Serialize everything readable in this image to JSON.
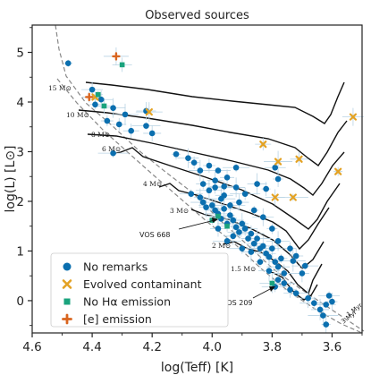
{
  "chart_data": {
    "type": "scatter",
    "title": "Observed sources",
    "xlabel": "log(Teff) [K]",
    "ylabel": "log(L) [L⊙]",
    "xlim": [
      4.6,
      3.5
    ],
    "ylim": [
      -0.65,
      5.55
    ],
    "x_reversed": true,
    "xticks": [
      "4.6",
      "4.4",
      "4.2",
      "4.0",
      "3.8",
      "3.6"
    ],
    "yticks": [
      "0",
      "1",
      "2",
      "3",
      "4",
      "5"
    ],
    "legend_position": "lower-left",
    "colors": {
      "no_remarks": "#0b6faf",
      "evolved": "#e3a224",
      "no_halpha": "#1aa37d",
      "e_emission": "#d9651f",
      "track": "#111111",
      "isochrone": "#888888",
      "errorbar": "#b8d3e4"
    },
    "series": [
      {
        "name": "No remarks",
        "marker": "circle",
        "points": [
          [
            4.48,
            4.78
          ],
          [
            4.4,
            4.25
          ],
          [
            4.39,
            3.95
          ],
          [
            4.37,
            4.05
          ],
          [
            4.35,
            3.62
          ],
          [
            4.33,
            3.88
          ],
          [
            4.31,
            3.55
          ],
          [
            4.29,
            3.75
          ],
          [
            4.27,
            3.42
          ],
          [
            4.22,
            3.52
          ],
          [
            4.2,
            3.37
          ],
          [
            4.33,
            2.97
          ],
          [
            4.22,
            3.82
          ],
          [
            4.12,
            2.95
          ],
          [
            4.08,
            2.87
          ],
          [
            4.06,
            2.78
          ],
          [
            4.04,
            2.62
          ],
          [
            4.01,
            2.72
          ],
          [
            3.98,
            2.62
          ],
          [
            3.95,
            2.48
          ],
          [
            3.92,
            2.68
          ],
          [
            3.99,
            2.42
          ],
          [
            3.96,
            2.3
          ],
          [
            3.92,
            2.28
          ],
          [
            3.89,
            2.15
          ],
          [
            3.85,
            2.35
          ],
          [
            3.82,
            2.25
          ],
          [
            3.79,
            2.68
          ],
          [
            3.78,
            2.45
          ],
          [
            4.07,
            2.15
          ],
          [
            4.04,
            2.08
          ],
          [
            4.03,
            1.98
          ],
          [
            4.02,
            1.88
          ],
          [
            4.0,
            1.92
          ],
          [
            3.99,
            1.82
          ],
          [
            3.98,
            1.75
          ],
          [
            3.97,
            1.65
          ],
          [
            3.96,
            1.85
          ],
          [
            3.95,
            1.55
          ],
          [
            3.94,
            1.72
          ],
          [
            3.93,
            1.62
          ],
          [
            3.92,
            1.48
          ],
          [
            3.91,
            1.38
          ],
          [
            3.9,
            1.55
          ],
          [
            3.89,
            1.45
          ],
          [
            3.88,
            1.25
          ],
          [
            3.87,
            1.35
          ],
          [
            3.86,
            1.15
          ],
          [
            3.85,
            1.25
          ],
          [
            3.84,
            1.05
          ],
          [
            3.83,
            1.1
          ],
          [
            3.82,
            0.95
          ],
          [
            3.81,
            0.88
          ],
          [
            3.8,
            1.05
          ],
          [
            3.79,
            0.78
          ],
          [
            3.78,
            0.68
          ],
          [
            3.77,
            0.85
          ],
          [
            3.76,
            0.55
          ],
          [
            4.03,
            2.35
          ],
          [
            4.01,
            2.22
          ],
          [
            3.99,
            2.28
          ],
          [
            3.97,
            2.05
          ],
          [
            3.96,
            2.12
          ],
          [
            3.94,
            1.92
          ],
          [
            3.91,
            1.98
          ],
          [
            3.86,
            1.82
          ],
          [
            3.83,
            1.68
          ],
          [
            3.8,
            1.45
          ],
          [
            3.78,
            1.2
          ],
          [
            3.74,
            1.05
          ],
          [
            3.73,
            0.8
          ],
          [
            3.72,
            0.9
          ],
          [
            3.69,
            0.7
          ],
          [
            3.98,
            1.45
          ],
          [
            3.95,
            1.2
          ],
          [
            3.93,
            1.3
          ],
          [
            3.9,
            1.05
          ],
          [
            3.87,
            0.98
          ],
          [
            3.84,
            0.78
          ],
          [
            3.81,
            0.6
          ],
          [
            3.78,
            0.42
          ],
          [
            3.76,
            0.35
          ],
          [
            3.74,
            0.22
          ],
          [
            3.72,
            0.15
          ],
          [
            3.7,
            0.55
          ],
          [
            3.79,
            0.28
          ],
          [
            3.68,
            0.05
          ],
          [
            3.66,
            -0.05
          ],
          [
            3.64,
            -0.18
          ],
          [
            3.63,
            -0.3
          ],
          [
            3.62,
            -0.08
          ],
          [
            3.62,
            -0.48
          ],
          [
            3.61,
            0.1
          ],
          [
            3.6,
            -0.02
          ]
        ]
      },
      {
        "name": "Evolved contaminant",
        "marker": "x",
        "points": [
          [
            4.39,
            4.1
          ],
          [
            4.21,
            3.8
          ],
          [
            3.83,
            3.15
          ],
          [
            3.78,
            2.8
          ],
          [
            3.71,
            2.85
          ],
          [
            3.73,
            2.08
          ],
          [
            3.79,
            2.08
          ],
          [
            3.58,
            2.6
          ],
          [
            3.53,
            3.7
          ]
        ]
      },
      {
        "name": "No Hα emission",
        "marker": "square",
        "points": [
          [
            4.3,
            4.75
          ],
          [
            4.38,
            4.15
          ],
          [
            4.36,
            3.92
          ],
          [
            4.0,
            1.62
          ],
          [
            3.98,
            1.7
          ],
          [
            3.95,
            1.5
          ],
          [
            3.8,
            0.35
          ]
        ]
      },
      {
        "name": "[e] emission",
        "marker": "plus",
        "points": [
          [
            4.32,
            4.92
          ],
          [
            4.41,
            4.1
          ]
        ]
      }
    ],
    "track_labels": [
      "15 M⊙",
      "10 M⊙",
      "8 M⊙",
      "6 M⊙",
      "4 M⊙",
      "3 M⊙",
      "2 M⊙",
      "1.5 M⊙"
    ],
    "annotations": [
      "VOS 668",
      "VOS 209"
    ],
    "isochrone_labels": [
      "1 Myr",
      "3 Myr"
    ]
  }
}
